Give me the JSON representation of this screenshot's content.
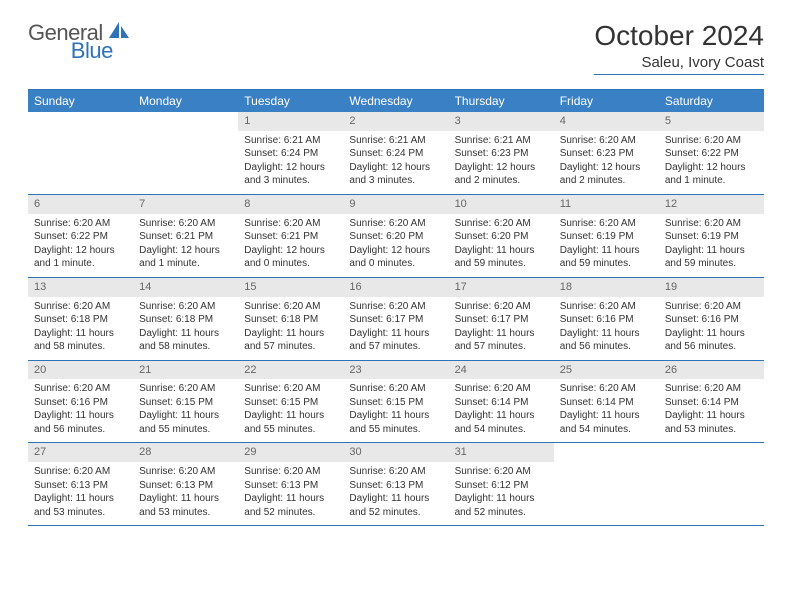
{
  "logo": {
    "text1": "General",
    "text2": "Blue"
  },
  "title": "October 2024",
  "location": "Saleu, Ivory Coast",
  "colors": {
    "header_bg": "#3a80c4",
    "border": "#2e72b8",
    "daynum_bg": "#e8e8e8",
    "text": "#333333"
  },
  "days_of_week": [
    "Sunday",
    "Monday",
    "Tuesday",
    "Wednesday",
    "Thursday",
    "Friday",
    "Saturday"
  ],
  "weeks": [
    [
      {
        "n": "",
        "sr": "",
        "ss": "",
        "dl": ""
      },
      {
        "n": "",
        "sr": "",
        "ss": "",
        "dl": ""
      },
      {
        "n": "1",
        "sr": "Sunrise: 6:21 AM",
        "ss": "Sunset: 6:24 PM",
        "dl": "Daylight: 12 hours and 3 minutes."
      },
      {
        "n": "2",
        "sr": "Sunrise: 6:21 AM",
        "ss": "Sunset: 6:24 PM",
        "dl": "Daylight: 12 hours and 3 minutes."
      },
      {
        "n": "3",
        "sr": "Sunrise: 6:21 AM",
        "ss": "Sunset: 6:23 PM",
        "dl": "Daylight: 12 hours and 2 minutes."
      },
      {
        "n": "4",
        "sr": "Sunrise: 6:20 AM",
        "ss": "Sunset: 6:23 PM",
        "dl": "Daylight: 12 hours and 2 minutes."
      },
      {
        "n": "5",
        "sr": "Sunrise: 6:20 AM",
        "ss": "Sunset: 6:22 PM",
        "dl": "Daylight: 12 hours and 1 minute."
      }
    ],
    [
      {
        "n": "6",
        "sr": "Sunrise: 6:20 AM",
        "ss": "Sunset: 6:22 PM",
        "dl": "Daylight: 12 hours and 1 minute."
      },
      {
        "n": "7",
        "sr": "Sunrise: 6:20 AM",
        "ss": "Sunset: 6:21 PM",
        "dl": "Daylight: 12 hours and 1 minute."
      },
      {
        "n": "8",
        "sr": "Sunrise: 6:20 AM",
        "ss": "Sunset: 6:21 PM",
        "dl": "Daylight: 12 hours and 0 minutes."
      },
      {
        "n": "9",
        "sr": "Sunrise: 6:20 AM",
        "ss": "Sunset: 6:20 PM",
        "dl": "Daylight: 12 hours and 0 minutes."
      },
      {
        "n": "10",
        "sr": "Sunrise: 6:20 AM",
        "ss": "Sunset: 6:20 PM",
        "dl": "Daylight: 11 hours and 59 minutes."
      },
      {
        "n": "11",
        "sr": "Sunrise: 6:20 AM",
        "ss": "Sunset: 6:19 PM",
        "dl": "Daylight: 11 hours and 59 minutes."
      },
      {
        "n": "12",
        "sr": "Sunrise: 6:20 AM",
        "ss": "Sunset: 6:19 PM",
        "dl": "Daylight: 11 hours and 59 minutes."
      }
    ],
    [
      {
        "n": "13",
        "sr": "Sunrise: 6:20 AM",
        "ss": "Sunset: 6:18 PM",
        "dl": "Daylight: 11 hours and 58 minutes."
      },
      {
        "n": "14",
        "sr": "Sunrise: 6:20 AM",
        "ss": "Sunset: 6:18 PM",
        "dl": "Daylight: 11 hours and 58 minutes."
      },
      {
        "n": "15",
        "sr": "Sunrise: 6:20 AM",
        "ss": "Sunset: 6:18 PM",
        "dl": "Daylight: 11 hours and 57 minutes."
      },
      {
        "n": "16",
        "sr": "Sunrise: 6:20 AM",
        "ss": "Sunset: 6:17 PM",
        "dl": "Daylight: 11 hours and 57 minutes."
      },
      {
        "n": "17",
        "sr": "Sunrise: 6:20 AM",
        "ss": "Sunset: 6:17 PM",
        "dl": "Daylight: 11 hours and 57 minutes."
      },
      {
        "n": "18",
        "sr": "Sunrise: 6:20 AM",
        "ss": "Sunset: 6:16 PM",
        "dl": "Daylight: 11 hours and 56 minutes."
      },
      {
        "n": "19",
        "sr": "Sunrise: 6:20 AM",
        "ss": "Sunset: 6:16 PM",
        "dl": "Daylight: 11 hours and 56 minutes."
      }
    ],
    [
      {
        "n": "20",
        "sr": "Sunrise: 6:20 AM",
        "ss": "Sunset: 6:16 PM",
        "dl": "Daylight: 11 hours and 56 minutes."
      },
      {
        "n": "21",
        "sr": "Sunrise: 6:20 AM",
        "ss": "Sunset: 6:15 PM",
        "dl": "Daylight: 11 hours and 55 minutes."
      },
      {
        "n": "22",
        "sr": "Sunrise: 6:20 AM",
        "ss": "Sunset: 6:15 PM",
        "dl": "Daylight: 11 hours and 55 minutes."
      },
      {
        "n": "23",
        "sr": "Sunrise: 6:20 AM",
        "ss": "Sunset: 6:15 PM",
        "dl": "Daylight: 11 hours and 55 minutes."
      },
      {
        "n": "24",
        "sr": "Sunrise: 6:20 AM",
        "ss": "Sunset: 6:14 PM",
        "dl": "Daylight: 11 hours and 54 minutes."
      },
      {
        "n": "25",
        "sr": "Sunrise: 6:20 AM",
        "ss": "Sunset: 6:14 PM",
        "dl": "Daylight: 11 hours and 54 minutes."
      },
      {
        "n": "26",
        "sr": "Sunrise: 6:20 AM",
        "ss": "Sunset: 6:14 PM",
        "dl": "Daylight: 11 hours and 53 minutes."
      }
    ],
    [
      {
        "n": "27",
        "sr": "Sunrise: 6:20 AM",
        "ss": "Sunset: 6:13 PM",
        "dl": "Daylight: 11 hours and 53 minutes."
      },
      {
        "n": "28",
        "sr": "Sunrise: 6:20 AM",
        "ss": "Sunset: 6:13 PM",
        "dl": "Daylight: 11 hours and 53 minutes."
      },
      {
        "n": "29",
        "sr": "Sunrise: 6:20 AM",
        "ss": "Sunset: 6:13 PM",
        "dl": "Daylight: 11 hours and 52 minutes."
      },
      {
        "n": "30",
        "sr": "Sunrise: 6:20 AM",
        "ss": "Sunset: 6:13 PM",
        "dl": "Daylight: 11 hours and 52 minutes."
      },
      {
        "n": "31",
        "sr": "Sunrise: 6:20 AM",
        "ss": "Sunset: 6:12 PM",
        "dl": "Daylight: 11 hours and 52 minutes."
      },
      {
        "n": "",
        "sr": "",
        "ss": "",
        "dl": ""
      },
      {
        "n": "",
        "sr": "",
        "ss": "",
        "dl": ""
      }
    ]
  ]
}
